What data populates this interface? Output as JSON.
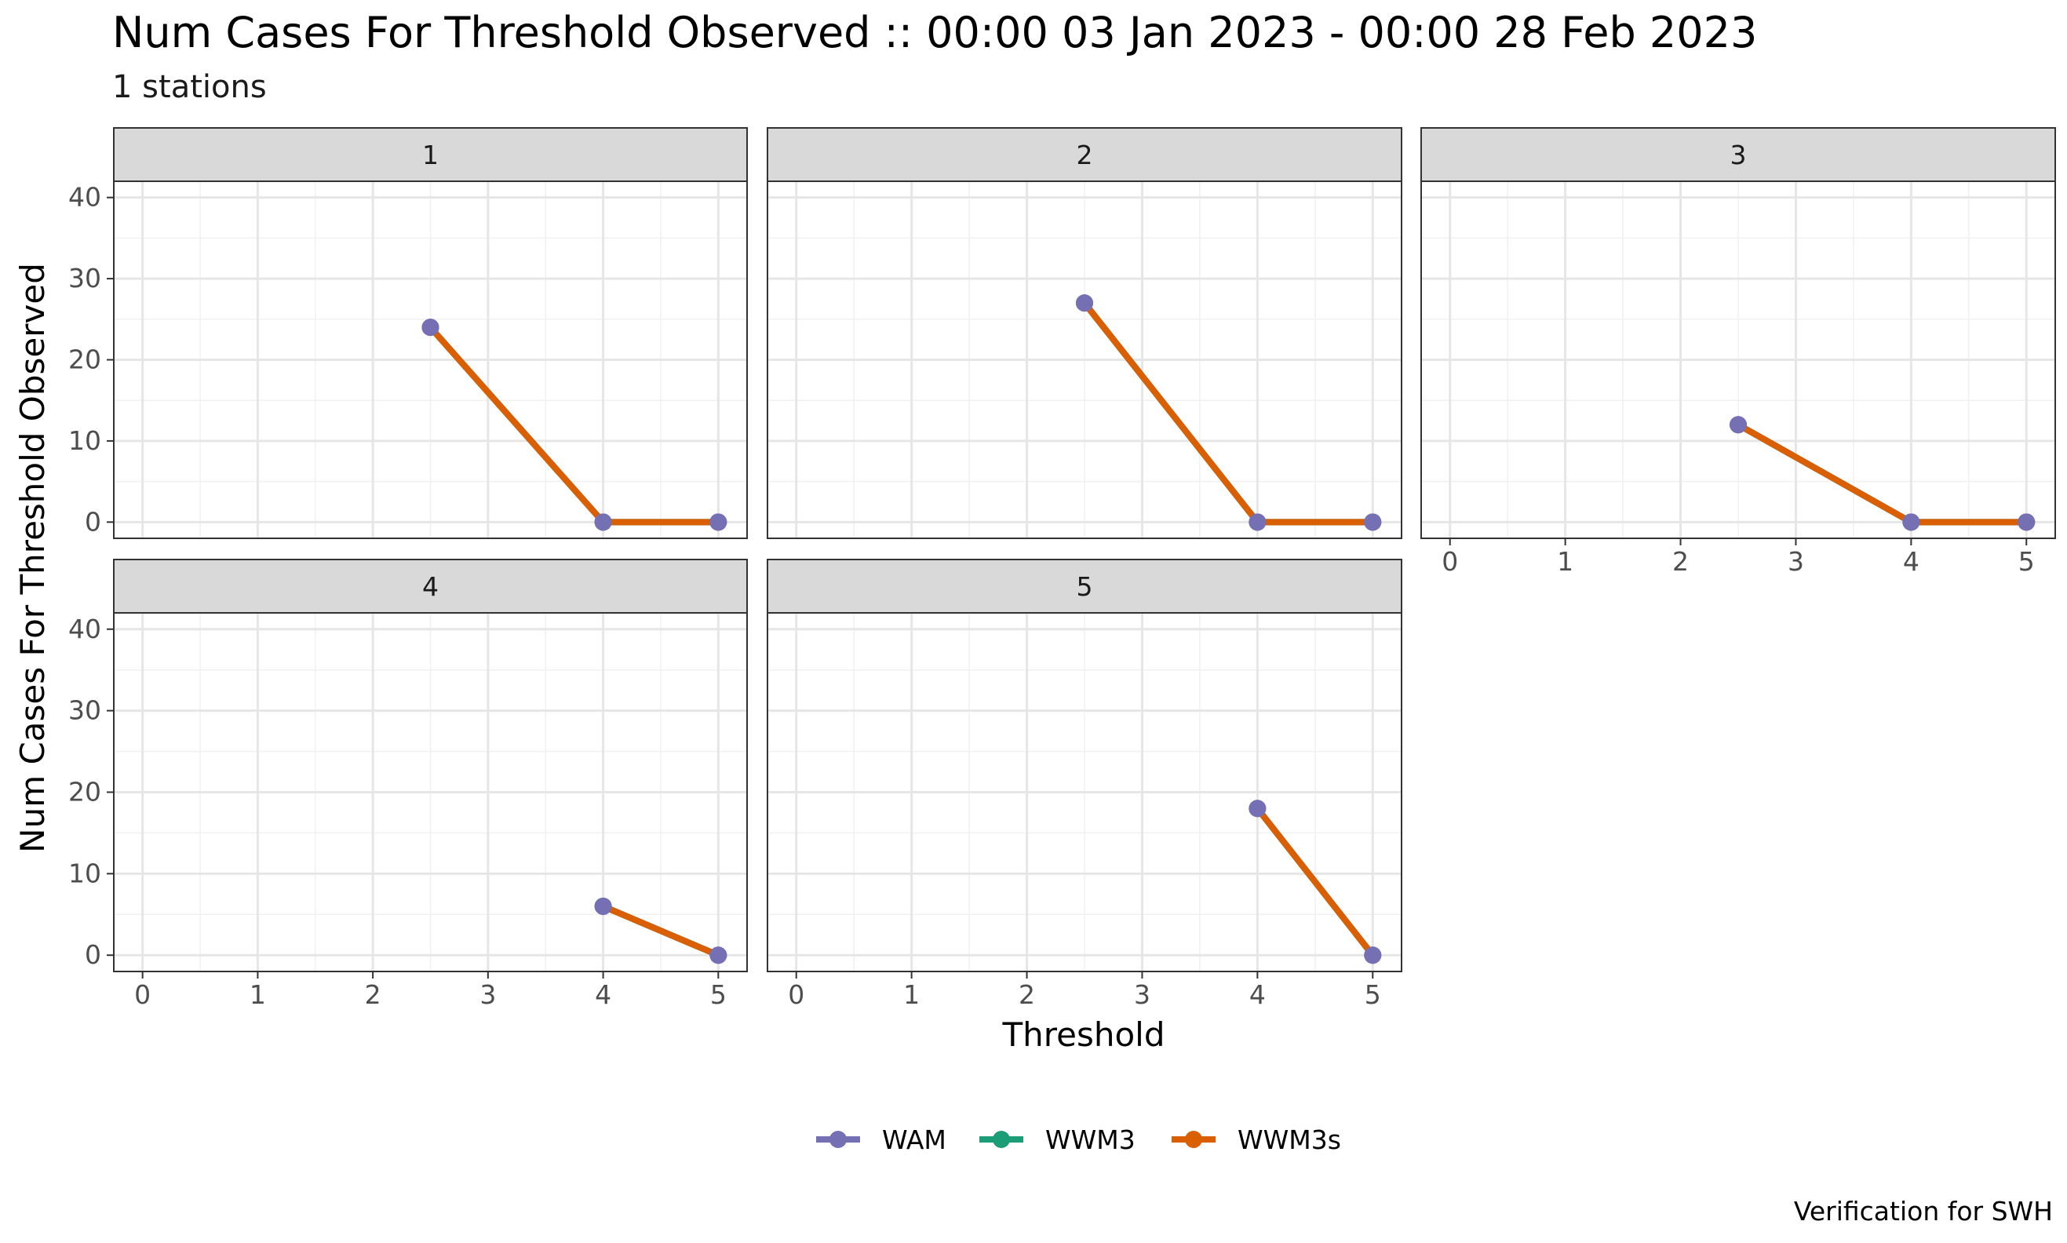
{
  "title": "Num Cases For Threshold Observed :: 00:00 03 Jan 2023 - 00:00 28 Feb 2023",
  "subtitle": "1 stations",
  "caption": "Verification for SWH",
  "chart_data": {
    "type": "line",
    "facet_type": "wrap",
    "xlabel": "Threshold",
    "ylabel": "Num Cases For Threshold Observed",
    "xlim": [
      -0.25,
      5.25
    ],
    "ylim": [
      -2,
      42
    ],
    "x_ticks": [
      0,
      1,
      2,
      3,
      4,
      5
    ],
    "y_ticks": [
      0,
      10,
      20,
      30,
      40
    ],
    "grid": true,
    "legend_position": "bottom",
    "legend": [
      {
        "name": "WAM",
        "color": "#7570B3"
      },
      {
        "name": "WWM3",
        "color": "#1B9E77"
      },
      {
        "name": "WWM3s",
        "color": "#D95F02"
      }
    ],
    "panels": [
      {
        "label": "1",
        "series": [
          {
            "name": "WAM",
            "x": [
              2.5,
              4,
              5
            ],
            "y": [
              24,
              0,
              0
            ]
          },
          {
            "name": "WWM3",
            "x": [
              2.5,
              4,
              5
            ],
            "y": [
              24,
              0,
              0
            ]
          },
          {
            "name": "WWM3s",
            "x": [
              2.5,
              4,
              5
            ],
            "y": [
              24,
              0,
              0
            ]
          }
        ]
      },
      {
        "label": "2",
        "series": [
          {
            "name": "WAM",
            "x": [
              2.5,
              4,
              5
            ],
            "y": [
              27,
              0,
              0
            ]
          },
          {
            "name": "WWM3",
            "x": [
              2.5,
              4,
              5
            ],
            "y": [
              27,
              0,
              0
            ]
          },
          {
            "name": "WWM3s",
            "x": [
              2.5,
              4,
              5
            ],
            "y": [
              27,
              0,
              0
            ]
          }
        ]
      },
      {
        "label": "3",
        "series": [
          {
            "name": "WAM",
            "x": [
              2.5,
              4,
              5
            ],
            "y": [
              12,
              0,
              0
            ]
          },
          {
            "name": "WWM3",
            "x": [
              2.5,
              4,
              5
            ],
            "y": [
              12,
              0,
              0
            ]
          },
          {
            "name": "WWM3s",
            "x": [
              2.5,
              4,
              5
            ],
            "y": [
              12,
              0,
              0
            ]
          }
        ]
      },
      {
        "label": "4",
        "series": [
          {
            "name": "WAM",
            "x": [
              4,
              5
            ],
            "y": [
              6,
              0
            ]
          },
          {
            "name": "WWM3",
            "x": [
              4,
              5
            ],
            "y": [
              6,
              0
            ]
          },
          {
            "name": "WWM3s",
            "x": [
              4,
              5
            ],
            "y": [
              6,
              0
            ]
          }
        ]
      },
      {
        "label": "5",
        "series": [
          {
            "name": "WAM",
            "x": [
              4,
              5
            ],
            "y": [
              18,
              0
            ]
          },
          {
            "name": "WWM3",
            "x": [
              4,
              5
            ],
            "y": [
              18,
              0
            ]
          },
          {
            "name": "WWM3s",
            "x": [
              4,
              5
            ],
            "y": [
              18,
              0
            ]
          }
        ]
      }
    ]
  }
}
